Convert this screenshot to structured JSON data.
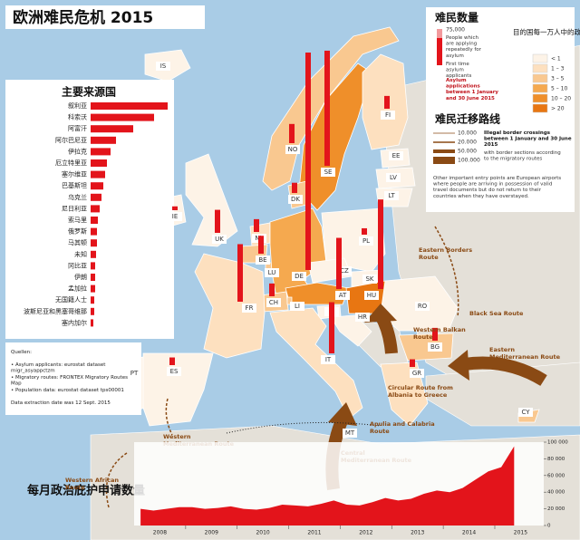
{
  "title": "欧洲难民危机 2015",
  "legend_count": {
    "title": "难民数量",
    "max_label": "75,000",
    "items": [
      "People which are applying repeatedly for asylum",
      "First time asylum applicants"
    ],
    "note": "Asylum applications between 1 January and 30 June 2015"
  },
  "legend_ratio": {
    "title": "目的国每一万人中的政治庇护申请数",
    "classes": [
      "< 1",
      "1 – 3",
      "3 – 5",
      "5 – 10",
      "10 – 20",
      "> 20"
    ],
    "colors": [
      "#fdf3e7",
      "#fde0bf",
      "#f9c890",
      "#f5a94f",
      "#ef8f2a",
      "#e87612"
    ]
  },
  "legend_routes": {
    "title": "难民迁移路线",
    "widths": [
      {
        "value": 10000,
        "label": "10.000"
      },
      {
        "value": 20000,
        "label": "20.000"
      },
      {
        "value": 50000,
        "label": "50.000"
      },
      {
        "value": 100000,
        "label": "100.000"
      }
    ],
    "note": "Illegal border crossings between 1 January and 30 June 2015",
    "note2": "with border sections according to the migratory routes",
    "note3": "Other important entry points are European airports where people are arriving in possession of valid travel documents but do not return to their countries when they have overstayed.",
    "color": "#8a4a14"
  },
  "countries": {
    "labels": [
      "IS",
      "NO",
      "SE",
      "FI",
      "EE",
      "LV",
      "LT",
      "DK",
      "IE",
      "UK",
      "NL",
      "BE",
      "LU",
      "DE",
      "PL",
      "CZ",
      "SK",
      "AT",
      "HU",
      "CH",
      "LI",
      "FR",
      "SI",
      "HR",
      "RO",
      "BG",
      "IT",
      "PT",
      "ES",
      "GR",
      "MT",
      "CY"
    ],
    "classes": [
      0,
      2,
      4,
      1,
      0,
      0,
      0,
      2,
      0,
      0,
      1,
      2,
      2,
      3,
      0,
      0,
      0,
      4,
      5,
      2,
      2,
      1,
      0,
      0,
      0,
      2,
      1,
      0,
      0,
      1,
      3,
      2
    ],
    "values": [
      null,
      15000,
      90000,
      10000,
      null,
      null,
      null,
      8000,
      3000,
      18000,
      10000,
      14000,
      null,
      170000,
      5000,
      null,
      null,
      40000,
      70000,
      10000,
      null,
      45000,
      null,
      null,
      null,
      10000,
      40000,
      null,
      6000,
      6000,
      null,
      null
    ],
    "color": "#e3141b"
  },
  "origins": {
    "title": "主要来源国",
    "categories": [
      "叙利亚",
      "科索沃",
      "阿富汗",
      "阿尔巴尼亚",
      "伊拉克",
      "厄立特里亚",
      "塞尔维亚",
      "巴基斯坦",
      "乌克兰",
      "尼日利亚",
      "索马里",
      "俄罗斯",
      "马其顿",
      "未知",
      "冈比亚",
      "伊朗",
      "孟加拉",
      "无国籍人士",
      "波斯尼亚和黑塞哥维那",
      "塞内加尔"
    ],
    "values": [
      85000,
      70000,
      47000,
      28000,
      22000,
      18000,
      16000,
      14000,
      12000,
      10000,
      8000,
      7000,
      7000,
      6000,
      5000,
      5000,
      5000,
      4000,
      4000,
      3000
    ],
    "xlim": [
      0,
      100000
    ],
    "color": "#e3141b"
  },
  "sources": [
    "Quellen:",
    "• Asylum applicants: eurostat dataset migr_asyappctzm",
    "• Migratory routes: FRONTEX Migratory Routes Map",
    "• Population data: eurostat dataset tps00001",
    "Data extraction date was 12 Sept. 2015"
  ],
  "routes": [
    "Eastern Borders Route",
    "Western Balkan Route",
    "Black Sea Route",
    "Eastern Mediterranean Route",
    "Circular Route from Albania to Greece",
    "Apulia and Calabria Route",
    "Central Mediterranean Route",
    "Western Mediterranean Route",
    "Western African Route"
  ],
  "monthly": {
    "title": "每月政治庇护申请数量",
    "xticks": [
      "2008",
      "2009",
      "2010",
      "2011",
      "2012",
      "2013",
      "2014",
      "2015"
    ],
    "values": [
      20000,
      18000,
      20000,
      22000,
      22000,
      20000,
      21000,
      23000,
      20000,
      19000,
      21000,
      25000,
      24000,
      23000,
      26000,
      30000,
      25000,
      24000,
      28000,
      33000,
      30000,
      32000,
      38000,
      42000,
      40000,
      45000,
      55000,
      65000,
      70000,
      95000
    ],
    "ylim": [
      0,
      100000
    ],
    "yticks": [
      0,
      {
        "value": 20000,
        "label": "20 000"
      },
      {
        "value": 40000,
        "label": "40 000"
      },
      {
        "value": 60000,
        "label": "60 000"
      },
      {
        "value": 80000,
        "label": "80 000"
      },
      {
        "value": 100000,
        "label": "100 000"
      }
    ],
    "color": "#e3141b"
  }
}
